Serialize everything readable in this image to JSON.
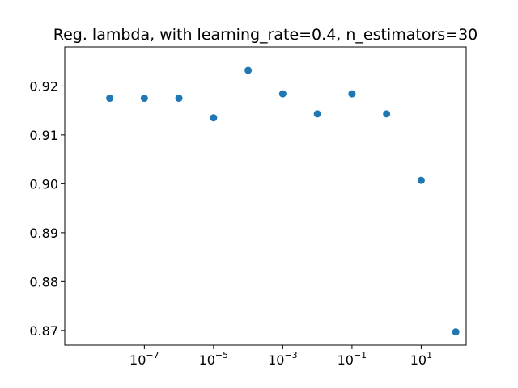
{
  "chart_data": {
    "type": "scatter",
    "title": "Reg. lambda, with learning_rate=0.4, n_estimators=30",
    "xlabel": "",
    "ylabel": "",
    "xscale": "log",
    "xlim_exponent": [
      -9.3,
      2.3
    ],
    "ylim": [
      0.867,
      0.928
    ],
    "x_ticks": [
      {
        "base": "10",
        "exp": "−7",
        "exponent": -7
      },
      {
        "base": "10",
        "exp": "−5",
        "exponent": -5
      },
      {
        "base": "10",
        "exp": "−3",
        "exponent": -3
      },
      {
        "base": "10",
        "exp": "−1",
        "exponent": -1
      },
      {
        "base": "10",
        "exp": "1",
        "exponent": 1
      }
    ],
    "y_ticks": [
      {
        "label": "0.87",
        "value": 0.87
      },
      {
        "label": "0.88",
        "value": 0.88
      },
      {
        "label": "0.89",
        "value": 0.89
      },
      {
        "label": "0.90",
        "value": 0.9
      },
      {
        "label": "0.91",
        "value": 0.91
      },
      {
        "label": "0.92",
        "value": 0.92
      }
    ],
    "series": [
      {
        "color": "#1f77b4",
        "points": [
          {
            "x": 1e-08,
            "y": 0.9175
          },
          {
            "x": 1e-07,
            "y": 0.9175
          },
          {
            "x": 1e-06,
            "y": 0.9175
          },
          {
            "x": 1e-05,
            "y": 0.9135
          },
          {
            "x": 0.0001,
            "y": 0.9232
          },
          {
            "x": 0.001,
            "y": 0.9184
          },
          {
            "x": 0.01,
            "y": 0.9143
          },
          {
            "x": 0.1,
            "y": 0.9184
          },
          {
            "x": 1,
            "y": 0.9143
          },
          {
            "x": 10,
            "y": 0.9007
          },
          {
            "x": 100,
            "y": 0.8697
          }
        ]
      }
    ],
    "grid": false
  }
}
